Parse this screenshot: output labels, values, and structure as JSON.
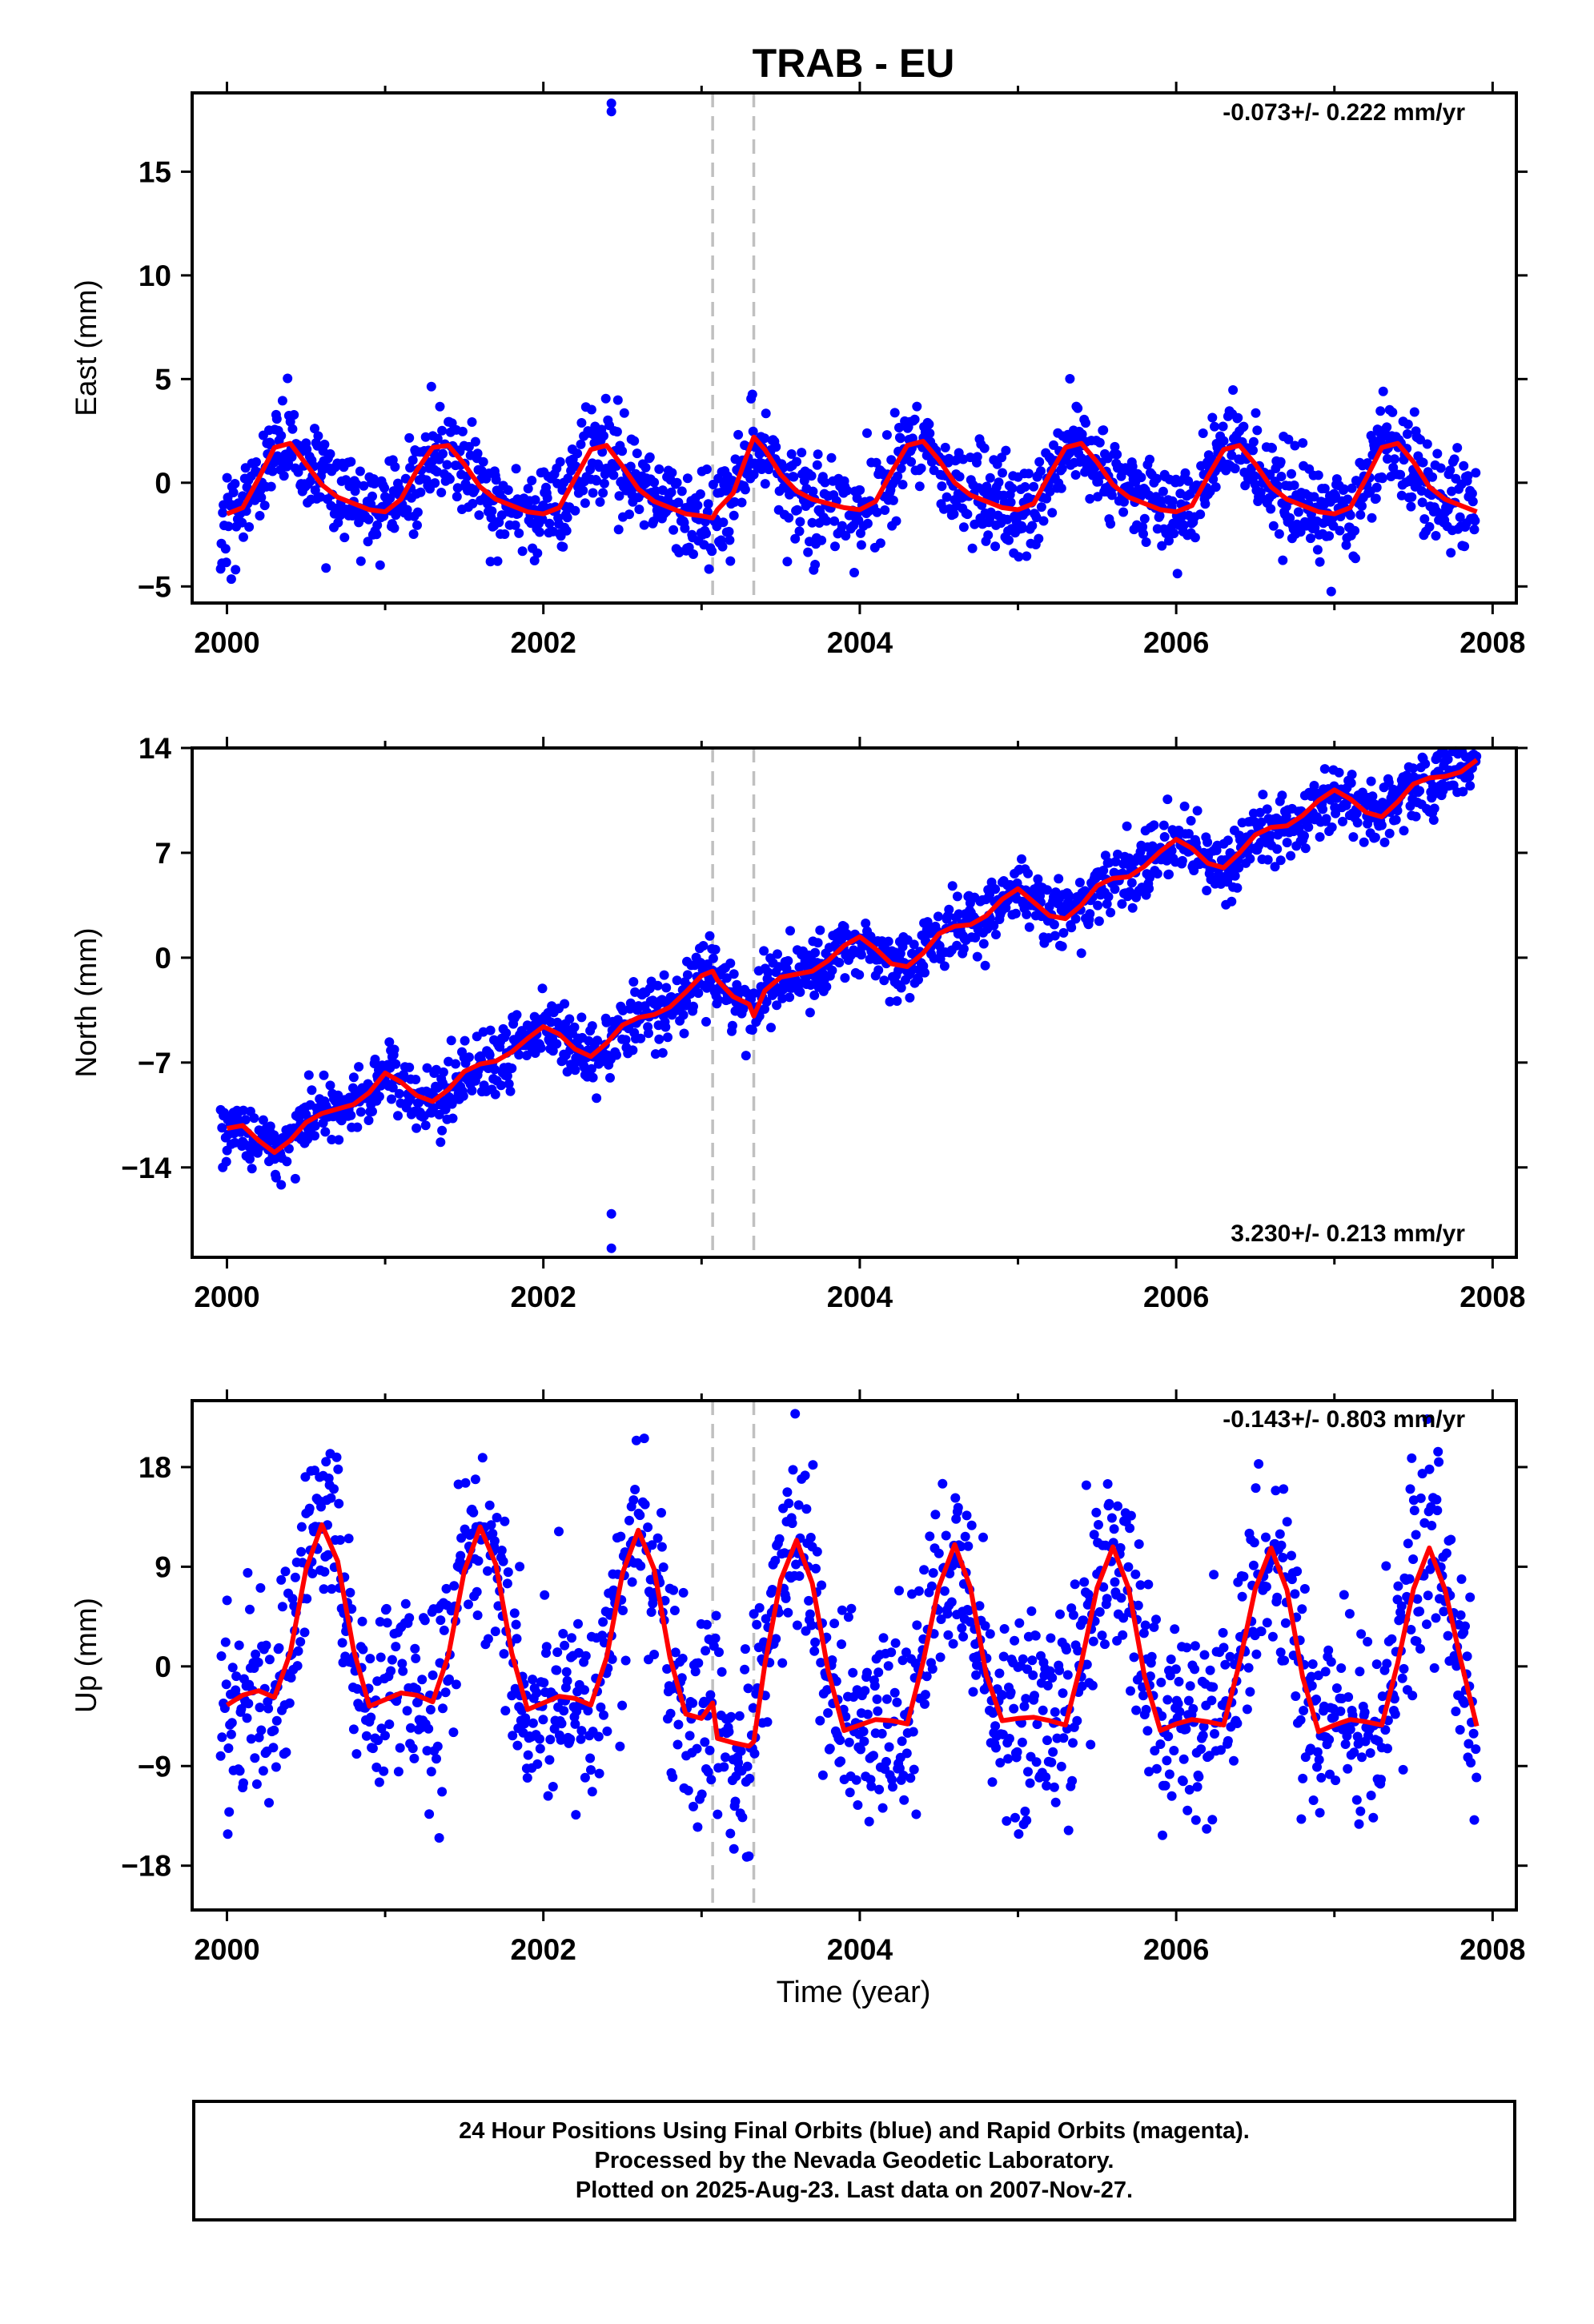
{
  "figure_title": "TRAB - EU",
  "x_axis_label": "Time (year)",
  "caption": [
    "24 Hour Positions Using Final Orbits (blue) and Rapid Orbits (magenta).",
    "Processed by the Nevada Geodetic Laboratory.",
    "Plotted on 2025-Aug-23. Last data on 2007-Nov-27."
  ],
  "colors": {
    "points": "#0000ff",
    "model": "#ff0000",
    "steps": "#c0c0c0",
    "frame": "#000000"
  },
  "chart_data": [
    {
      "type": "scatter",
      "component": "east",
      "ylabel": "East (mm)",
      "velocity_label": "-0.073+/- 0.222 mm/yr",
      "velocity_mm_yr": -0.073,
      "velocity_sigma_mm_yr": 0.222,
      "xlim": [
        1999.78,
        2008.15
      ],
      "ylim": [
        -5.8,
        18.8
      ],
      "xticks": [
        2000,
        2002,
        2004,
        2006,
        2008
      ],
      "yticks": [
        -5,
        0,
        5,
        10,
        15
      ],
      "step_epochs": [
        2003.07,
        2003.33
      ],
      "outliers": [
        {
          "x": 2002.43,
          "y": 18.3
        },
        {
          "x": 2002.43,
          "y": 17.9
        }
      ],
      "series": [
        {
          "role": "model",
          "x": [
            2000.0,
            2000.1,
            2000.2,
            2000.3,
            2000.4,
            2000.5,
            2000.6,
            2000.7,
            2000.8,
            2000.9,
            2001.0,
            2001.1,
            2001.2,
            2001.3,
            2001.4,
            2001.5,
            2001.6,
            2001.7,
            2001.8,
            2001.9,
            2002.0,
            2002.1,
            2002.2,
            2002.3,
            2002.4,
            2002.5,
            2002.6,
            2002.7,
            2002.8,
            2002.9,
            2003.0,
            2003.07,
            2003.1,
            2003.2,
            2003.3,
            2003.33,
            2003.4,
            2003.5,
            2003.6,
            2003.7,
            2003.8,
            2003.9,
            2004.0,
            2004.1,
            2004.2,
            2004.3,
            2004.4,
            2004.5,
            2004.6,
            2004.7,
            2004.8,
            2004.9,
            2005.0,
            2005.1,
            2005.2,
            2005.3,
            2005.4,
            2005.5,
            2005.6,
            2005.7,
            2005.8,
            2005.9,
            2006.0,
            2006.1,
            2006.2,
            2006.3,
            2006.4,
            2006.5,
            2006.6,
            2006.7,
            2006.8,
            2006.9,
            2007.0,
            2007.1,
            2007.2,
            2007.3,
            2007.4,
            2007.5,
            2007.6,
            2007.7,
            2007.8,
            2007.9
          ],
          "values": [
            -1.5,
            -1.2,
            0.2,
            1.7,
            1.9,
            0.9,
            -0.1,
            -0.7,
            -1.0,
            -1.3,
            -1.4,
            -0.8,
            0.6,
            1.7,
            1.8,
            0.9,
            -0.2,
            -0.8,
            -1.1,
            -1.4,
            -1.5,
            -1.2,
            0.2,
            1.6,
            1.8,
            0.8,
            -0.3,
            -0.9,
            -1.2,
            -1.5,
            -1.6,
            -1.7,
            -1.3,
            -0.5,
            1.6,
            2.2,
            1.6,
            0.4,
            -0.4,
            -0.8,
            -1.0,
            -1.2,
            -1.3,
            -0.9,
            0.5,
            1.8,
            2.0,
            1.1,
            0.0,
            -0.6,
            -0.9,
            -1.2,
            -1.3,
            -1.0,
            0.4,
            1.7,
            1.9,
            1.0,
            -0.1,
            -0.7,
            -1.0,
            -1.3,
            -1.4,
            -1.1,
            0.3,
            1.6,
            1.8,
            0.9,
            -0.2,
            -0.8,
            -1.1,
            -1.4,
            -1.5,
            -1.2,
            0.2,
            1.7,
            1.9,
            1.0,
            -0.2,
            -0.8,
            -1.1,
            -1.4
          ]
        }
      ]
    },
    {
      "type": "scatter",
      "component": "north",
      "ylabel": "North (mm)",
      "velocity_label": "3.230+/- 0.213 mm/yr",
      "velocity_mm_yr": 3.23,
      "velocity_sigma_mm_yr": 0.213,
      "xlim": [
        1999.78,
        2008.15
      ],
      "ylim": [
        -20.0,
        14.0
      ],
      "xticks": [
        2000,
        2002,
        2004,
        2006,
        2008
      ],
      "yticks": [
        -14,
        -7,
        0,
        7,
        14
      ],
      "step_epochs": [
        2003.07,
        2003.33
      ],
      "outliers": [
        {
          "x": 2002.43,
          "y": -17.1
        },
        {
          "x": 2002.43,
          "y": -19.4
        }
      ],
      "series": [
        {
          "role": "model",
          "x": [
            2000.0,
            2000.1,
            2000.2,
            2000.3,
            2000.4,
            2000.5,
            2000.6,
            2000.7,
            2000.8,
            2000.9,
            2001.0,
            2001.1,
            2001.2,
            2001.3,
            2001.4,
            2001.5,
            2001.6,
            2001.7,
            2001.8,
            2001.9,
            2002.0,
            2002.1,
            2002.2,
            2002.3,
            2002.4,
            2002.5,
            2002.6,
            2002.7,
            2002.8,
            2002.9,
            2003.0,
            2003.07,
            2003.1,
            2003.2,
            2003.3,
            2003.33,
            2003.4,
            2003.5,
            2003.6,
            2003.7,
            2003.8,
            2003.9,
            2004.0,
            2004.1,
            2004.2,
            2004.3,
            2004.4,
            2004.5,
            2004.6,
            2004.7,
            2004.8,
            2004.9,
            2005.0,
            2005.1,
            2005.2,
            2005.3,
            2005.4,
            2005.5,
            2005.6,
            2005.7,
            2005.8,
            2005.9,
            2006.0,
            2006.1,
            2006.2,
            2006.3,
            2006.4,
            2006.5,
            2006.6,
            2006.7,
            2006.8,
            2006.9,
            2007.0,
            2007.1,
            2007.2,
            2007.3,
            2007.4,
            2007.5,
            2007.6,
            2007.7,
            2007.8,
            2007.9
          ],
          "values": [
            -11.4,
            -11.2,
            -12.2,
            -13.0,
            -12.2,
            -11.0,
            -10.4,
            -10.1,
            -9.8,
            -9.0,
            -7.7,
            -8.3,
            -9.2,
            -9.6,
            -8.8,
            -7.6,
            -7.1,
            -6.9,
            -6.3,
            -5.4,
            -4.6,
            -5.1,
            -6.1,
            -6.6,
            -5.7,
            -4.5,
            -4.0,
            -3.8,
            -3.3,
            -2.3,
            -1.2,
            -0.9,
            -1.5,
            -2.6,
            -3.1,
            -3.9,
            -2.2,
            -1.3,
            -1.1,
            -0.9,
            -0.2,
            0.8,
            1.4,
            0.6,
            -0.4,
            -0.6,
            0.3,
            1.6,
            2.1,
            2.2,
            2.8,
            3.9,
            4.6,
            3.7,
            2.8,
            2.6,
            3.5,
            4.8,
            5.3,
            5.4,
            6.1,
            7.1,
            7.9,
            7.3,
            6.3,
            6.0,
            7.0,
            8.2,
            8.7,
            8.8,
            9.5,
            10.5,
            11.2,
            10.6,
            9.7,
            9.4,
            10.4,
            11.6,
            12.0,
            12.1,
            12.4,
            13.2
          ]
        }
      ]
    },
    {
      "type": "scatter",
      "component": "up",
      "ylabel": "Up (mm)",
      "velocity_label": "-0.143+/- 0.803 mm/yr",
      "velocity_mm_yr": -0.143,
      "velocity_sigma_mm_yr": 0.803,
      "xlim": [
        1999.78,
        2008.15
      ],
      "ylim": [
        -22.0,
        24.0
      ],
      "xticks": [
        2000,
        2002,
        2004,
        2006,
        2008
      ],
      "yticks": [
        -18,
        -9,
        0,
        9,
        18
      ],
      "step_epochs": [
        2003.07,
        2003.33
      ],
      "outliers": [],
      "series": [
        {
          "role": "model",
          "x": [
            2000.0,
            2000.1,
            2000.2,
            2000.3,
            2000.4,
            2000.5,
            2000.6,
            2000.7,
            2000.8,
            2000.9,
            2001.0,
            2001.1,
            2001.2,
            2001.3,
            2001.4,
            2001.5,
            2001.6,
            2001.7,
            2001.8,
            2001.9,
            2002.0,
            2002.1,
            2002.2,
            2002.3,
            2002.4,
            2002.5,
            2002.6,
            2002.7,
            2002.8,
            2002.9,
            2003.0,
            2003.07,
            2003.1,
            2003.2,
            2003.3,
            2003.33,
            2003.4,
            2003.5,
            2003.6,
            2003.7,
            2003.8,
            2003.9,
            2004.0,
            2004.1,
            2004.2,
            2004.3,
            2004.4,
            2004.5,
            2004.6,
            2004.7,
            2004.8,
            2004.9,
            2005.0,
            2005.1,
            2005.2,
            2005.3,
            2005.4,
            2005.5,
            2005.6,
            2005.7,
            2005.8,
            2005.9,
            2006.0,
            2006.1,
            2006.2,
            2006.3,
            2006.4,
            2006.5,
            2006.6,
            2006.7,
            2006.8,
            2006.9,
            2007.0,
            2007.1,
            2007.2,
            2007.3,
            2007.4,
            2007.5,
            2007.6,
            2007.7,
            2007.8,
            2007.9
          ],
          "values": [
            -3.5,
            -2.6,
            -2.2,
            -2.8,
            1.2,
            8.8,
            12.8,
            9.5,
            1.5,
            -3.6,
            -3.0,
            -2.4,
            -2.6,
            -3.2,
            1.0,
            8.6,
            12.6,
            9.2,
            1.2,
            -3.9,
            -3.3,
            -2.7,
            -2.9,
            -3.5,
            0.8,
            8.4,
            12.3,
            8.8,
            0.8,
            -4.3,
            -4.7,
            -3.3,
            -6.5,
            -6.9,
            -7.2,
            -6.8,
            0.2,
            7.8,
            11.4,
            7.5,
            -0.4,
            -5.8,
            -5.3,
            -4.8,
            -4.9,
            -5.2,
            0.4,
            7.2,
            11.0,
            7.1,
            -0.8,
            -4.9,
            -4.7,
            -4.6,
            -4.9,
            -5.3,
            0.3,
            7.1,
            10.8,
            7.0,
            -0.9,
            -5.8,
            -5.2,
            -4.8,
            -5.0,
            -5.3,
            0.3,
            7.0,
            10.7,
            6.9,
            -1.0,
            -5.9,
            -5.3,
            -4.8,
            -5.0,
            -5.3,
            0.3,
            7.0,
            10.7,
            6.9,
            0.5,
            -5.4
          ]
        }
      ]
    }
  ]
}
